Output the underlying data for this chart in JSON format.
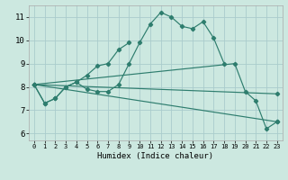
{
  "xlabel": "Humidex (Indice chaleur)",
  "bg_color": "#cce8e0",
  "grid_color": "#aacccc",
  "line_color": "#2e7d6e",
  "xlim": [
    -0.5,
    23.5
  ],
  "ylim": [
    5.7,
    11.5
  ],
  "xtick_labels": [
    "0",
    "1",
    "2",
    "3",
    "4",
    "5",
    "6",
    "7",
    "8",
    "9",
    "10",
    "11",
    "12",
    "13",
    "14",
    "15",
    "16",
    "17",
    "18",
    "19",
    "20",
    "21",
    "22",
    "23"
  ],
  "ytick_vals": [
    6,
    7,
    8,
    9,
    10,
    11
  ],
  "curves": [
    {
      "x": [
        0,
        1,
        2,
        3,
        4,
        5,
        6,
        7,
        8,
        9,
        10,
        11,
        12,
        13,
        14,
        15,
        16,
        17,
        18
      ],
      "y": [
        8.1,
        7.3,
        7.5,
        8.0,
        8.2,
        7.9,
        7.8,
        7.8,
        8.1,
        9.0,
        9.9,
        10.7,
        11.2,
        11.0,
        10.6,
        10.5,
        10.8,
        10.1,
        9.0
      ]
    },
    {
      "x": [
        0,
        1,
        2,
        3,
        4,
        5,
        6,
        7,
        8,
        9
      ],
      "y": [
        8.1,
        7.3,
        7.5,
        8.0,
        8.2,
        8.5,
        8.9,
        9.0,
        9.6,
        9.9
      ]
    },
    {
      "x": [
        0,
        19,
        20,
        21,
        22,
        23
      ],
      "y": [
        8.1,
        9.0,
        7.8,
        7.4,
        6.2,
        6.5
      ]
    },
    {
      "x": [
        0,
        23
      ],
      "y": [
        8.1,
        7.7
      ]
    },
    {
      "x": [
        0,
        23
      ],
      "y": [
        8.1,
        6.5
      ]
    }
  ]
}
